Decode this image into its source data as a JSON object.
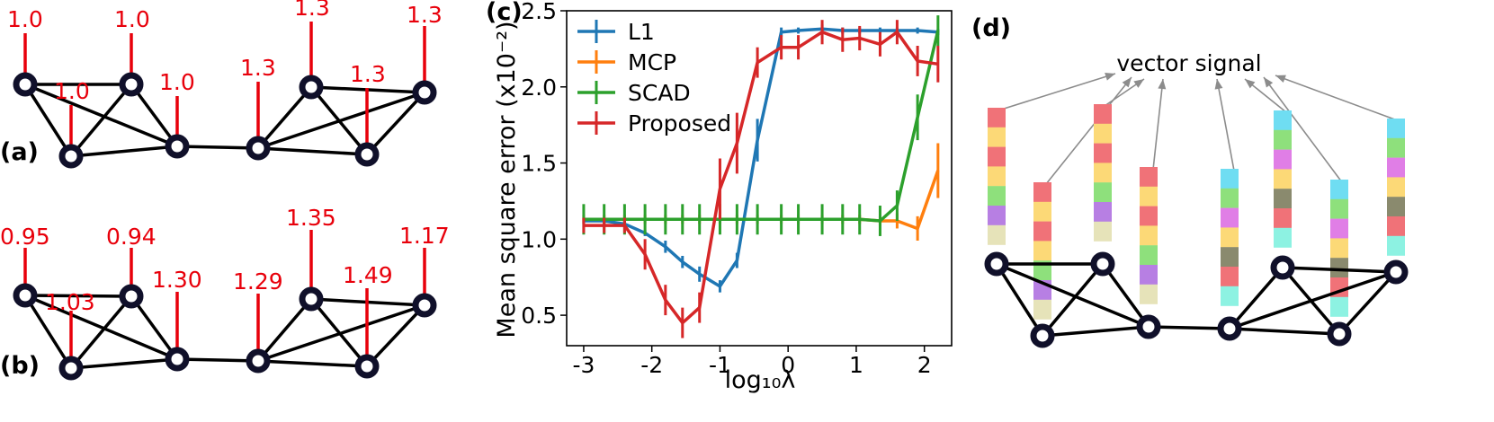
{
  "panels": {
    "a": {
      "label": "(a)",
      "values": [
        "1.0",
        "1.0",
        "1.0",
        "1.0",
        "1.3",
        "1.3",
        "1.3",
        "1.3"
      ]
    },
    "b": {
      "label": "(b)",
      "values": [
        "0.95",
        "0.94",
        "1.03",
        "1.30",
        "1.29",
        "1.35",
        "1.49",
        "1.17"
      ]
    },
    "c": {
      "label": "(c)"
    },
    "d": {
      "label": "(d)",
      "annotation": "vector signal"
    }
  },
  "colors": {
    "L1": "#1f77b4",
    "MCP": "#ff7f0e",
    "SCAD": "#2ca02c",
    "Proposed": "#d62728",
    "graph_value": "#e8000b",
    "vector_palette": [
      "#f07278",
      "#fcd977",
      "#8ee07c",
      "#b77fe3",
      "#e6e3b9",
      "#6fddf2",
      "#e07ee6",
      "#8a8a6e",
      "#8df2e2"
    ]
  },
  "chart_data": {
    "type": "line",
    "xlabel": "log₁₀λ",
    "ylabel": "Mean square error (x10⁻²)",
    "xlim": [
      -3.25,
      2.4
    ],
    "ylim": [
      0.3,
      2.5
    ],
    "xticks": [
      "-3",
      "-2",
      "-1",
      "0",
      "1",
      "2"
    ],
    "yticks": [
      "0.5",
      "1.0",
      "1.5",
      "2.0",
      "2.5"
    ],
    "legend_position": "top-left",
    "x": [
      -3.0,
      -2.7,
      -2.4,
      -2.1,
      -1.8,
      -1.55,
      -1.3,
      -1.0,
      -0.75,
      -0.45,
      -0.1,
      0.15,
      0.5,
      0.8,
      1.05,
      1.35,
      1.6,
      1.9,
      2.2
    ],
    "series": [
      {
        "name": "L1",
        "y": [
          1.12,
          1.12,
          1.1,
          1.04,
          0.95,
          0.85,
          0.77,
          0.69,
          0.86,
          1.65,
          2.36,
          2.37,
          2.38,
          2.37,
          2.37,
          2.37,
          2.37,
          2.37,
          2.36
        ],
        "err": [
          0.02,
          0.02,
          0.02,
          0.02,
          0.04,
          0.04,
          0.05,
          0.04,
          0.05,
          0.14,
          0.03,
          0.02,
          0.03,
          0.02,
          0.02,
          0.02,
          0.02,
          0.02,
          0.02
        ]
      },
      {
        "name": "MCP",
        "y": [
          1.13,
          1.13,
          1.13,
          1.13,
          1.13,
          1.13,
          1.13,
          1.13,
          1.13,
          1.13,
          1.13,
          1.13,
          1.13,
          1.13,
          1.13,
          1.12,
          1.12,
          1.07,
          1.45
        ],
        "err": [
          0.03,
          0.03,
          0.03,
          0.03,
          0.03,
          0.03,
          0.03,
          0.03,
          0.03,
          0.03,
          0.03,
          0.03,
          0.03,
          0.03,
          0.03,
          0.03,
          0.05,
          0.08,
          0.18
        ]
      },
      {
        "name": "SCAD",
        "y": [
          1.13,
          1.13,
          1.13,
          1.13,
          1.13,
          1.13,
          1.13,
          1.13,
          1.13,
          1.13,
          1.13,
          1.13,
          1.13,
          1.13,
          1.13,
          1.12,
          1.22,
          1.8,
          2.37
        ],
        "err": [
          0.1,
          0.1,
          0.1,
          0.1,
          0.1,
          0.1,
          0.1,
          0.1,
          0.1,
          0.1,
          0.1,
          0.1,
          0.1,
          0.1,
          0.1,
          0.1,
          0.1,
          0.15,
          0.1
        ]
      },
      {
        "name": "Proposed",
        "y": [
          1.09,
          1.09,
          1.09,
          0.9,
          0.6,
          0.45,
          0.55,
          1.33,
          1.63,
          2.16,
          2.26,
          2.26,
          2.36,
          2.31,
          2.32,
          2.28,
          2.36,
          2.17,
          2.15
        ],
        "err": [
          0.05,
          0.05,
          0.05,
          0.1,
          0.1,
          0.1,
          0.1,
          0.2,
          0.2,
          0.1,
          0.08,
          0.08,
          0.08,
          0.08,
          0.08,
          0.08,
          0.08,
          0.1,
          0.12
        ]
      }
    ]
  }
}
